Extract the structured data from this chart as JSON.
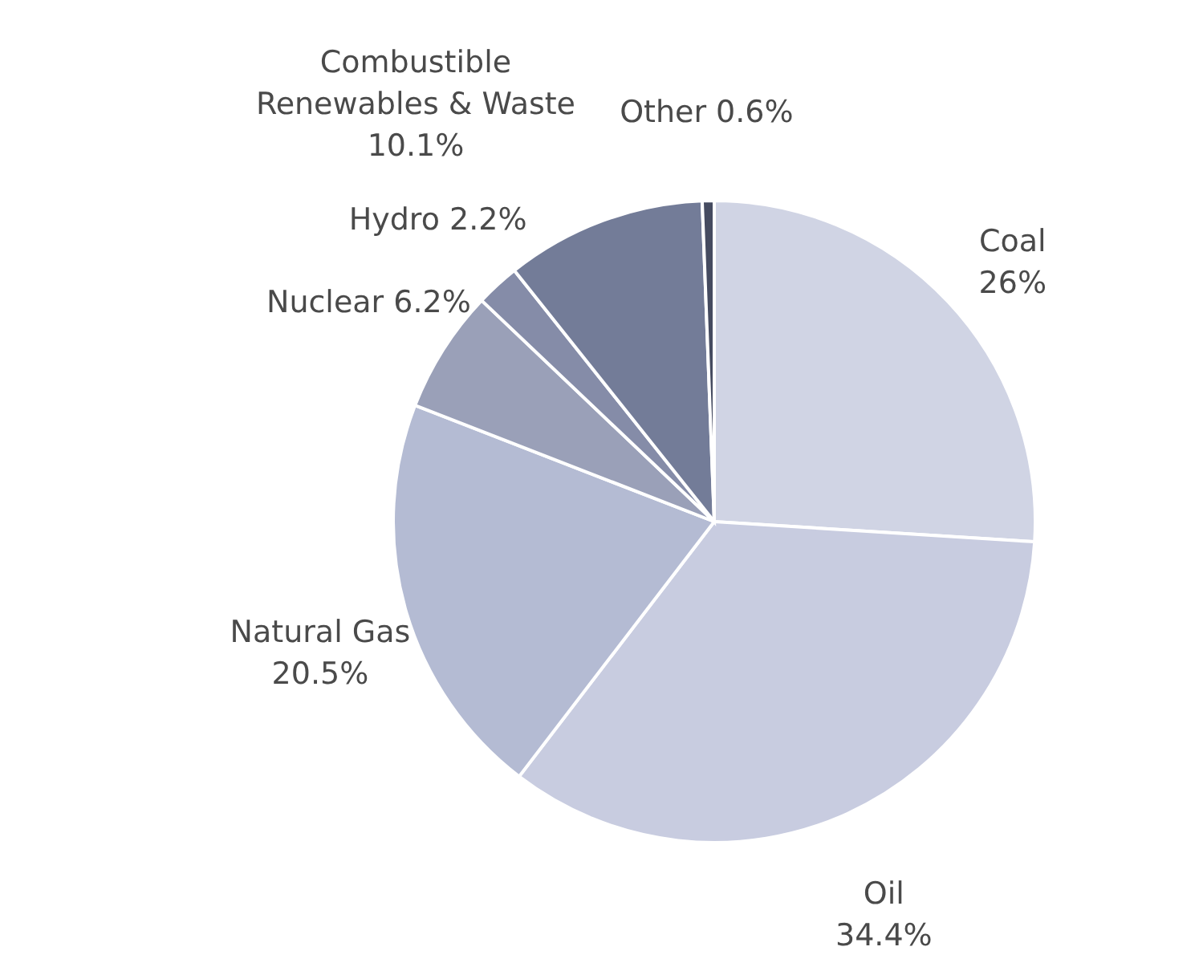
{
  "chart_data": {
    "type": "pie",
    "categories": [
      "Coal",
      "Oil",
      "Natural Gas",
      "Nuclear",
      "Hydro",
      "Combustible Renewables & Waste",
      "Other"
    ],
    "values": [
      26,
      34.4,
      20.5,
      6.2,
      2.2,
      10.1,
      0.6
    ],
    "value_labels": [
      "26%",
      "34.4%",
      "20.5%",
      "6.2%",
      "2.2%",
      "10.1%",
      "0.6%"
    ],
    "colors": [
      "#d0d4e4",
      "#c8cce0",
      "#b4bbd3",
      "#9aa0b8",
      "#858ca8",
      "#737c98",
      "#454b60"
    ],
    "legend": false
  }
}
